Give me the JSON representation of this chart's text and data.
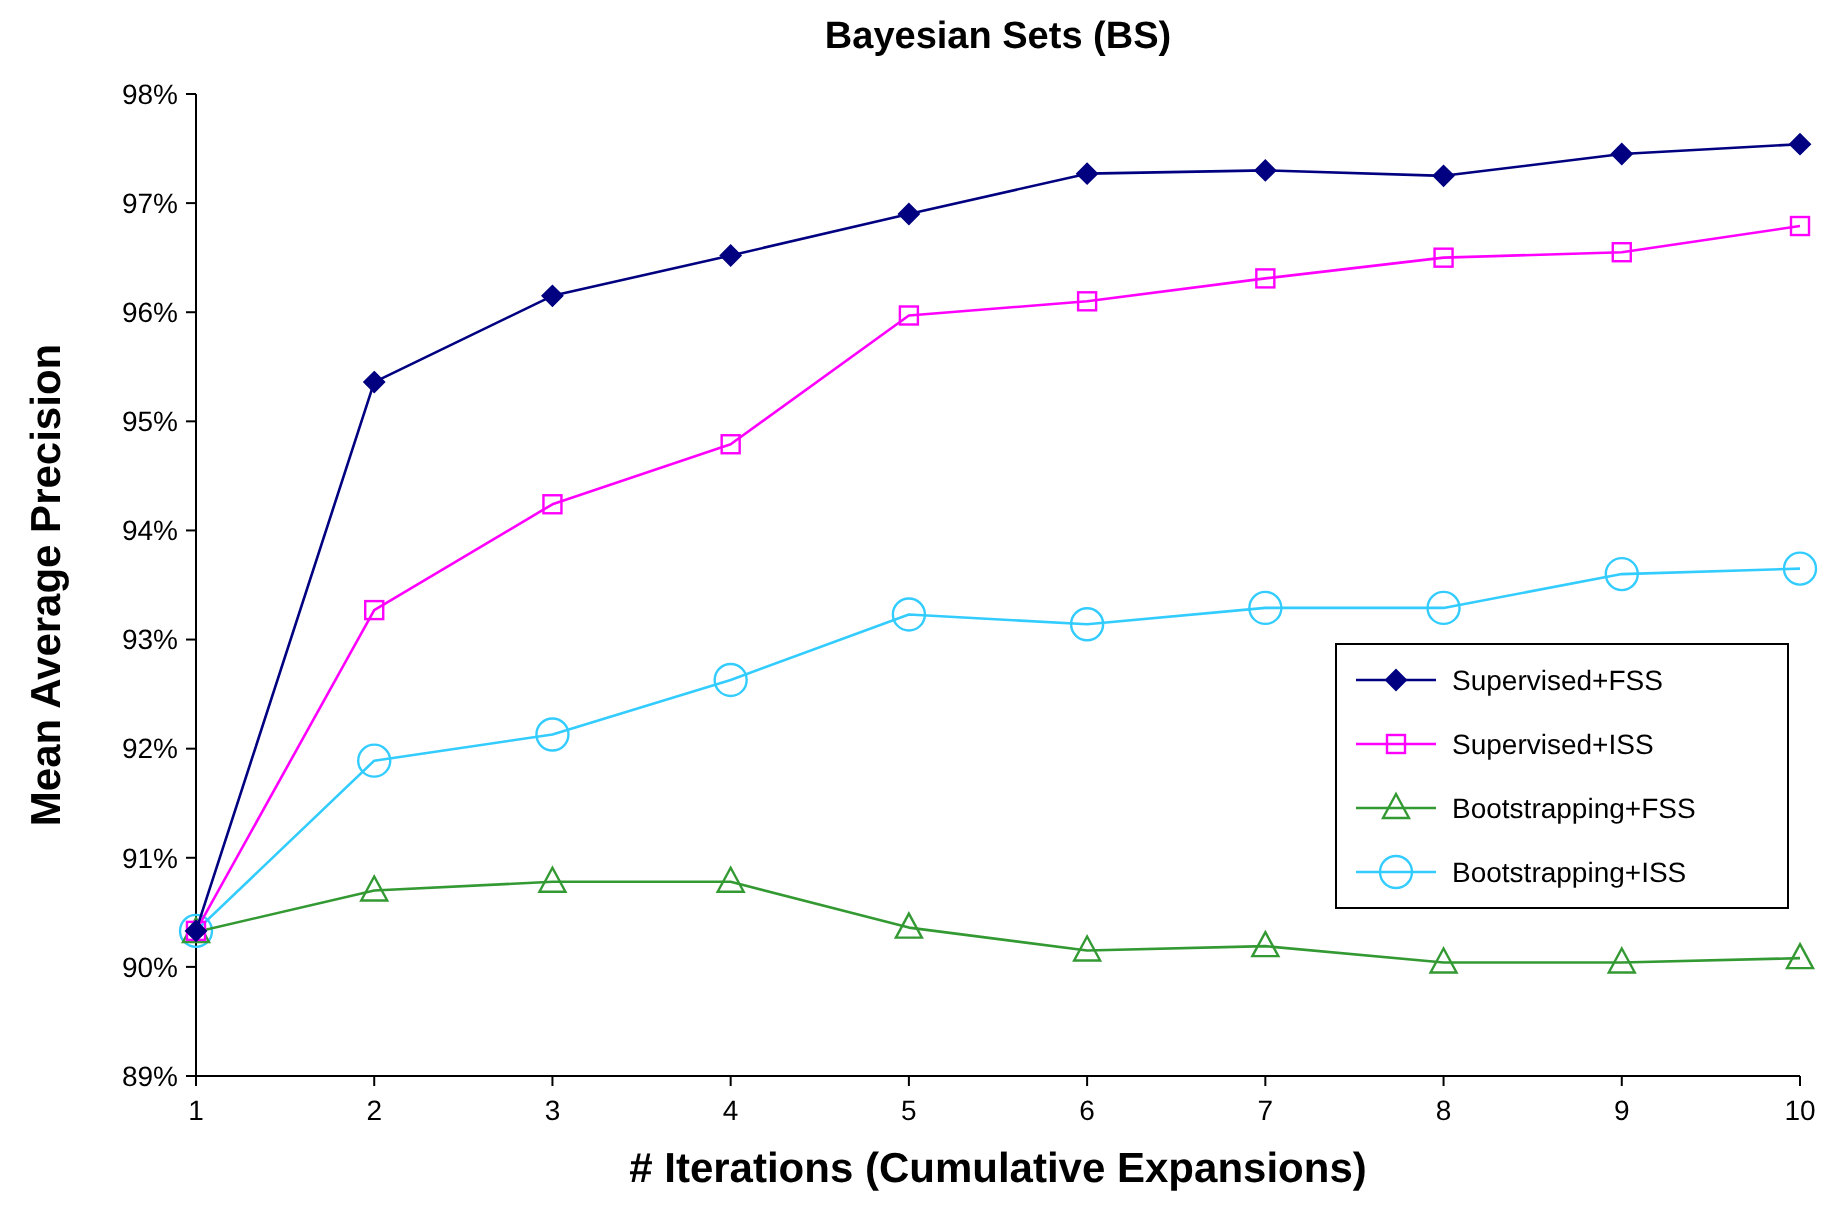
{
  "chart_data": {
    "type": "line",
    "title": "Bayesian Sets (BS)",
    "xlabel": "# Iterations (Cumulative Expansions)",
    "ylabel": "Mean Average Precision",
    "x": [
      1,
      2,
      3,
      4,
      5,
      6,
      7,
      8,
      9,
      10
    ],
    "xlim": [
      1,
      10
    ],
    "xticks": [
      1,
      2,
      3,
      4,
      5,
      6,
      7,
      8,
      9,
      10
    ],
    "ylim": [
      89,
      98
    ],
    "yticks": [
      {
        "value": 89,
        "label": "89%"
      },
      {
        "value": 90,
        "label": "90%"
      },
      {
        "value": 91,
        "label": "91%"
      },
      {
        "value": 92,
        "label": "92%"
      },
      {
        "value": 93,
        "label": "93%"
      },
      {
        "value": 94,
        "label": "94%"
      },
      {
        "value": 95,
        "label": "95%"
      },
      {
        "value": 96,
        "label": "96%"
      },
      {
        "value": 97,
        "label": "97%"
      },
      {
        "value": 98,
        "label": "98%"
      }
    ],
    "legend": "right",
    "grid": false,
    "series": [
      {
        "name": "Supervised+FSS",
        "color": "#000080",
        "marker": "diamond",
        "values": [
          90.33,
          95.36,
          96.15,
          96.52,
          96.9,
          97.27,
          97.3,
          97.25,
          97.45,
          97.54
        ]
      },
      {
        "name": "Supervised+ISS",
        "color": "#ff00ff",
        "marker": "square",
        "values": [
          90.33,
          93.27,
          94.24,
          94.79,
          95.97,
          96.1,
          96.31,
          96.5,
          96.55,
          96.79
        ]
      },
      {
        "name": "Bootstrapping+FSS",
        "color": "#339933",
        "marker": "triangle",
        "values": [
          90.32,
          90.7,
          90.78,
          90.78,
          90.36,
          90.15,
          90.19,
          90.04,
          90.04,
          90.08
        ]
      },
      {
        "name": "Bootstrapping+ISS",
        "color": "#33ccff",
        "marker": "circle",
        "values": [
          90.33,
          91.89,
          92.13,
          92.63,
          93.23,
          93.14,
          93.29,
          93.29,
          93.6,
          93.65
        ]
      }
    ]
  }
}
